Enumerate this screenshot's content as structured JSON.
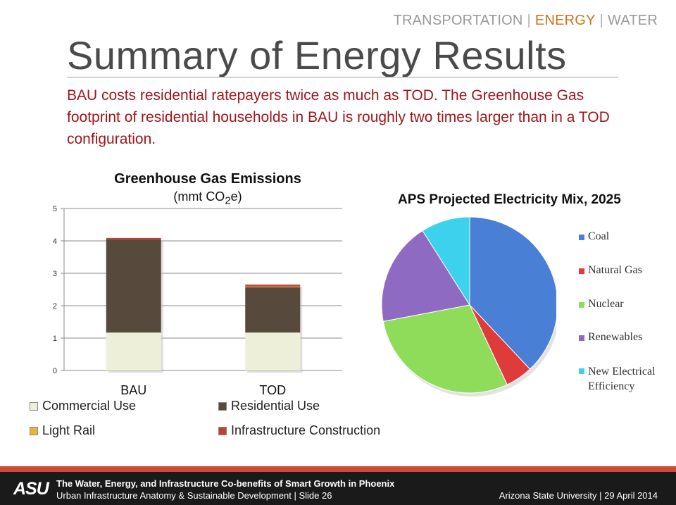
{
  "nav": {
    "items": [
      "TRANSPORTATION",
      "ENERGY",
      "WATER"
    ],
    "active": "ENERGY"
  },
  "title": "Summary of Energy Results",
  "subtitle": "BAU costs residential ratepayers twice as much as TOD. The Greenhouse Gas footprint of residential households in BAU is roughly two times larger than in a TOD configuration.",
  "bar_chart_title": "Greenhouse Gas Emissions",
  "bar_chart_unit": {
    "prefix": "(mmt CO",
    "subscript": "2",
    "suffix": "e)"
  },
  "legend": {
    "commercial": "Commercial Use",
    "residential": "Residential Use",
    "light_rail": "Light Rail",
    "infrastructure": "Infrastructure Construction"
  },
  "pie_chart_title": "APS Projected Electricity Mix, 2025",
  "pie_legend": {
    "coal": "Coal",
    "natural_gas": "Natural Gas",
    "nuclear": "Nuclear",
    "renewables": "Renewables",
    "efficiency": "New Electrical Efficiency"
  },
  "footer": {
    "logo": "ASU",
    "line1": "The Water, Energy, and Infrastructure Co-benefits of Smart Growth in Phoenix",
    "line2": "Urban Infrastructure Anatomy & Sustainable Development | Slide 26",
    "right": "Arizona State University | 29 April 2014"
  },
  "colors": {
    "commercial": "#eeefd9",
    "residential": "#574a3c",
    "light_rail": "#e8b53a",
    "infrastructure": "#c2412e",
    "coal": "#4a7fd6",
    "natural_gas": "#e03b3b",
    "nuclear": "#8fdc5a",
    "renewables": "#8f6ac2",
    "efficiency": "#3cd2ee"
  },
  "chart_data": [
    {
      "type": "bar",
      "stacked": true,
      "title": "Greenhouse Gas Emissions",
      "ylabel": "mmt CO2e",
      "categories": [
        "BAU",
        "TOD"
      ],
      "ylim": [
        0,
        5
      ],
      "yticks": [
        0,
        1,
        2,
        3,
        4,
        5
      ],
      "series": [
        {
          "name": "Commercial Use",
          "values": [
            1.17,
            1.17
          ]
        },
        {
          "name": "Residential Use",
          "values": [
            2.88,
            1.4
          ]
        },
        {
          "name": "Light Rail",
          "values": [
            0,
            0.02
          ]
        },
        {
          "name": "Infrastructure Construction",
          "values": [
            0.04,
            0.06
          ]
        }
      ]
    },
    {
      "type": "pie",
      "title": "APS Projected Electricity Mix, 2025",
      "labels": [
        "Coal",
        "Natural Gas",
        "Nuclear",
        "Renewables",
        "New Electrical Efficiency"
      ],
      "values": [
        38,
        5,
        29,
        19,
        9
      ]
    }
  ]
}
